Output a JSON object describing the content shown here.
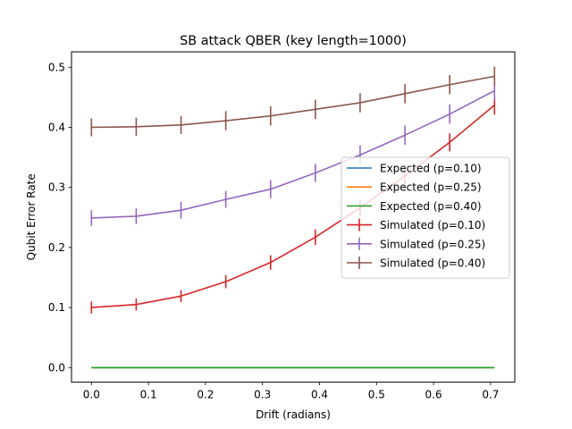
{
  "chart_data": {
    "type": "line",
    "title": "SB attack QBER (key length=1000)",
    "xlabel": "Drift (radians)",
    "ylabel": "Qubit Error Rate",
    "xlim": [
      -0.035,
      0.7425
    ],
    "ylim": [
      -0.0243,
      0.5257
    ],
    "xticks": [
      0.0,
      0.1,
      0.2,
      0.3,
      0.4,
      0.5,
      0.6,
      0.7
    ],
    "xtick_labels": [
      "0.0",
      "0.1",
      "0.2",
      "0.3",
      "0.4",
      "0.5",
      "0.6",
      "0.7"
    ],
    "yticks": [
      0.0,
      0.1,
      0.2,
      0.3,
      0.4,
      0.5
    ],
    "ytick_labels": [
      "0.0",
      "0.1",
      "0.2",
      "0.3",
      "0.4",
      "0.5"
    ],
    "grid": false,
    "legend_position": "center-right",
    "x": [
      0.0,
      0.0785,
      0.1571,
      0.2356,
      0.3142,
      0.3927,
      0.4712,
      0.5498,
      0.6283,
      0.7069
    ],
    "series": [
      {
        "name": "Expected (p=0.10)",
        "color": "#1f77b4",
        "values": [
          0,
          0,
          0,
          0,
          0,
          0,
          0,
          0,
          0,
          0
        ]
      },
      {
        "name": "Expected (p=0.25)",
        "color": "#ff7f0e",
        "values": [
          0,
          0,
          0,
          0,
          0,
          0,
          0,
          0,
          0,
          0
        ]
      },
      {
        "name": "Expected (p=0.40)",
        "color": "#2ca02c",
        "values": [
          0,
          0,
          0,
          0,
          0,
          0,
          0,
          0,
          0,
          0
        ]
      },
      {
        "name": "Simulated (p=0.10)",
        "color": "#d62728",
        "values": [
          0.1,
          0.105,
          0.119,
          0.143,
          0.175,
          0.217,
          0.266,
          0.319,
          0.375,
          0.437
        ],
        "errors": [
          0.01,
          0.01,
          0.01,
          0.011,
          0.012,
          0.013,
          0.014,
          0.014,
          0.015,
          0.016
        ]
      },
      {
        "name": "Simulated (p=0.25)",
        "color": "#9467bd",
        "values": [
          0.249,
          0.252,
          0.262,
          0.28,
          0.297,
          0.324,
          0.354,
          0.387,
          0.422,
          0.461
        ],
        "errors": [
          0.013,
          0.013,
          0.014,
          0.014,
          0.015,
          0.015,
          0.016,
          0.016,
          0.016,
          0.016
        ]
      },
      {
        "name": "Simulated (p=0.40)",
        "color": "#8c564b",
        "values": [
          0.4,
          0.401,
          0.404,
          0.411,
          0.419,
          0.43,
          0.441,
          0.456,
          0.471,
          0.485
        ],
        "errors": [
          0.015,
          0.015,
          0.015,
          0.016,
          0.016,
          0.016,
          0.016,
          0.016,
          0.016,
          0.016
        ]
      }
    ]
  }
}
